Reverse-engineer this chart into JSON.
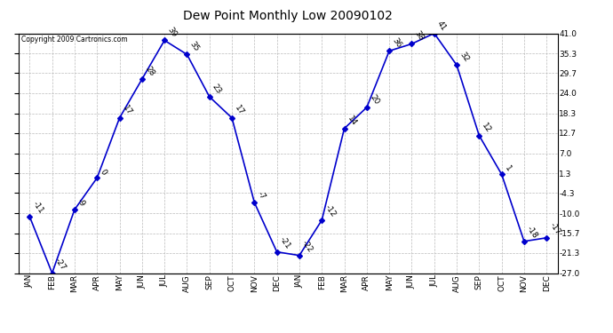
{
  "title": "Dew Point Monthly Low 20090102",
  "copyright": "Copyright 2009 Cartronics.com",
  "months": [
    "JAN",
    "FEB",
    "MAR",
    "APR",
    "MAY",
    "JUN",
    "JUL",
    "AUG",
    "SEP",
    "OCT",
    "NOV",
    "DEC",
    "JAN",
    "FEB",
    "MAR",
    "APR",
    "MAY",
    "JUN",
    "JUL",
    "AUG",
    "SEP",
    "OCT",
    "NOV",
    "DEC"
  ],
  "values": [
    -11,
    -27,
    -9,
    0,
    17,
    28,
    39,
    35,
    23,
    17,
    -7,
    -21,
    -22,
    -12,
    14,
    20,
    36,
    38,
    41,
    32,
    12,
    1,
    -18,
    -17
  ],
  "labels": [
    "-11",
    "-27",
    "-9",
    "0",
    "17",
    "28",
    "39",
    "35",
    "23",
    "17",
    "-7",
    "-21",
    "-22",
    "-12",
    "14",
    "20",
    "36",
    "38",
    "41",
    "32",
    "12",
    "1",
    "-18",
    "-17"
  ],
  "y_right_ticks": [
    41.0,
    35.3,
    29.7,
    24.0,
    18.3,
    12.7,
    7.0,
    1.3,
    -4.3,
    -10.0,
    -15.7,
    -21.3,
    -27.0
  ],
  "ylim": [
    -27.0,
    41.0
  ],
  "line_color": "#0000cc",
  "marker_color": "#0000cc",
  "bg_color": "#ffffff",
  "grid_color": "#bbbbbb",
  "title_fontsize": 10,
  "label_fontsize": 6.5,
  "tick_fontsize": 6.5,
  "copyright_fontsize": 5.5
}
